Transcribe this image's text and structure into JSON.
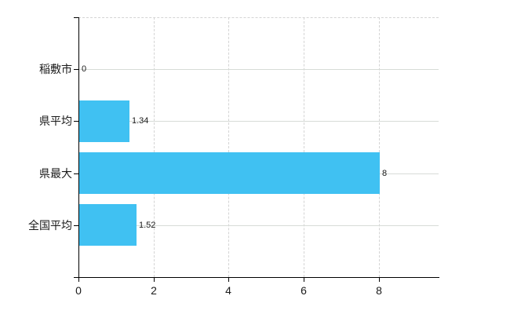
{
  "chart_data": {
    "type": "bar",
    "orientation": "horizontal",
    "title": "",
    "categories": [
      "稲敷市",
      "県平均",
      "県最大",
      "全国平均"
    ],
    "values": [
      0,
      1.34,
      8,
      1.52
    ],
    "value_labels": [
      "0",
      "1.34",
      "8",
      "1.52"
    ],
    "x_ticks": [
      0,
      2,
      4,
      6,
      8
    ],
    "x_tick_labels": [
      "0",
      "2",
      "4",
      "6",
      "8"
    ],
    "xlim": [
      0,
      9.59
    ],
    "grid": true,
    "legend": false,
    "gridline_style_vertical": "dashed",
    "gridline_style_horizontal": "solid",
    "plot_top_border_style": "dashed",
    "bar_color": "#40c1f2",
    "axis_color": "#000000",
    "hgrid_color": "#d7dbd7",
    "vgrid_color": "#d4d4d4",
    "label_color": "#1a1a1a",
    "background_color": "#ffffff"
  }
}
